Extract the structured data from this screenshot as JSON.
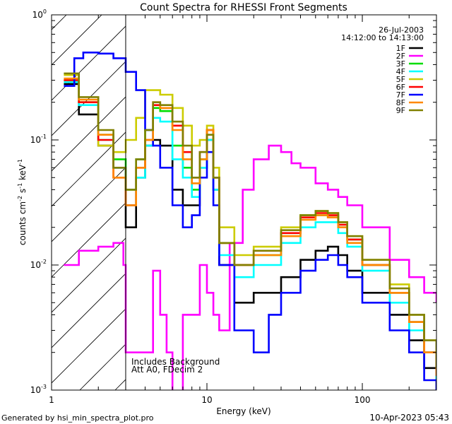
{
  "chart_data": {
    "type": "line",
    "title": "Count Spectra for RHESSI Front Segments",
    "xlabel": "Energy (keV)",
    "ylabel": {
      "base": "counts cm",
      "e1": "-2",
      "mid": " s",
      "e2": "-1",
      "mid2": " keV",
      "e3": "-1"
    },
    "x_scale": "log",
    "y_scale": "log",
    "xlim": [
      1,
      300
    ],
    "ylim": [
      0.001,
      1
    ],
    "x_ticks": [
      {
        "value": 1,
        "label": "1"
      },
      {
        "value": 10,
        "label": "10"
      },
      {
        "value": 100,
        "label": "100"
      }
    ],
    "y_ticks": [
      {
        "value": 0.001,
        "base": "10",
        "exp": "-3"
      },
      {
        "value": 0.01,
        "base": "10",
        "exp": "-2"
      },
      {
        "value": 0.1,
        "base": "10",
        "exp": "-1"
      },
      {
        "value": 1,
        "base": "10",
        "exp": "0"
      }
    ],
    "date": "26-Jul-2003",
    "time_range": "14:12:00 to 14:13:00",
    "hatched_region_upper_kev": 3,
    "annotations": [
      "Includes Background",
      "Att A0, FDecim 2"
    ],
    "series": [
      {
        "name": "1F",
        "color": "#000000",
        "points": [
          [
            1.2,
            0.28
          ],
          [
            1.5,
            0.16
          ],
          [
            2,
            0.09
          ],
          [
            2.5,
            0.06
          ],
          [
            3,
            0.02
          ],
          [
            3.5,
            0.05
          ],
          [
            4,
            0.09
          ],
          [
            4.5,
            0.1
          ],
          [
            5,
            0.09
          ],
          [
            6,
            0.04
          ],
          [
            7,
            0.03
          ],
          [
            8,
            0.03
          ],
          [
            9,
            0.06
          ],
          [
            10,
            0.1
          ],
          [
            11,
            0.04
          ],
          [
            12,
            0.01
          ],
          [
            15,
            0.005
          ],
          [
            20,
            0.006
          ],
          [
            30,
            0.008
          ],
          [
            40,
            0.011
          ],
          [
            50,
            0.013
          ],
          [
            60,
            0.014
          ],
          [
            70,
            0.012
          ],
          [
            80,
            0.009
          ],
          [
            100,
            0.006
          ],
          [
            150,
            0.004
          ],
          [
            200,
            0.0025
          ],
          [
            250,
            0.0015
          ],
          [
            300,
            0.001
          ]
        ]
      },
      {
        "name": "2F",
        "color": "#ff00ff",
        "points": [
          [
            1.2,
            0.01
          ],
          [
            1.5,
            0.013
          ],
          [
            2,
            0.014
          ],
          [
            2.5,
            0.015
          ],
          [
            2.9,
            0.01
          ],
          [
            3,
            0.002
          ],
          [
            4,
            0.002
          ],
          [
            4.5,
            0.009
          ],
          [
            5,
            0.004
          ],
          [
            5.5,
            0.002
          ],
          [
            6,
            0.0006
          ],
          [
            7,
            0.004
          ],
          [
            8,
            0.004
          ],
          [
            9,
            0.01
          ],
          [
            10,
            0.006
          ],
          [
            11,
            0.004
          ],
          [
            12,
            0.003
          ],
          [
            14,
            0.015
          ],
          [
            17,
            0.04
          ],
          [
            20,
            0.07
          ],
          [
            25,
            0.09
          ],
          [
            30,
            0.08
          ],
          [
            35,
            0.065
          ],
          [
            40,
            0.06
          ],
          [
            50,
            0.045
          ],
          [
            60,
            0.04
          ],
          [
            70,
            0.035
          ],
          [
            80,
            0.03
          ],
          [
            100,
            0.02
          ],
          [
            150,
            0.011
          ],
          [
            200,
            0.008
          ],
          [
            250,
            0.006
          ],
          [
            300,
            0.005
          ]
        ]
      },
      {
        "name": "3F",
        "color": "#00dd00",
        "points": [
          [
            1.2,
            0.3
          ],
          [
            1.5,
            0.2
          ],
          [
            2,
            0.11
          ],
          [
            2.5,
            0.07
          ],
          [
            3,
            0.04
          ],
          [
            3.5,
            0.07
          ],
          [
            4,
            0.12
          ],
          [
            4.5,
            0.18
          ],
          [
            5,
            0.17
          ],
          [
            6,
            0.09
          ],
          [
            7,
            0.06
          ],
          [
            8,
            0.04
          ],
          [
            9,
            0.07
          ],
          [
            10,
            0.12
          ],
          [
            11,
            0.05
          ],
          [
            12,
            0.015
          ],
          [
            15,
            0.01
          ],
          [
            20,
            0.012
          ],
          [
            30,
            0.018
          ],
          [
            40,
            0.025
          ],
          [
            50,
            0.025
          ],
          [
            60,
            0.024
          ],
          [
            70,
            0.02
          ],
          [
            80,
            0.016
          ],
          [
            100,
            0.01
          ],
          [
            150,
            0.006
          ],
          [
            200,
            0.0035
          ],
          [
            250,
            0.002
          ],
          [
            300,
            0.0015
          ]
        ]
      },
      {
        "name": "4F",
        "color": "#00ffff",
        "points": [
          [
            1.2,
            0.29
          ],
          [
            1.5,
            0.19
          ],
          [
            2,
            0.1
          ],
          [
            2.5,
            0.06
          ],
          [
            3,
            0.03
          ],
          [
            3.5,
            0.05
          ],
          [
            4,
            0.09
          ],
          [
            4.5,
            0.15
          ],
          [
            5,
            0.14
          ],
          [
            6,
            0.07
          ],
          [
            7,
            0.05
          ],
          [
            8,
            0.035
          ],
          [
            9,
            0.06
          ],
          [
            10,
            0.1
          ],
          [
            11,
            0.04
          ],
          [
            12,
            0.012
          ],
          [
            15,
            0.008
          ],
          [
            20,
            0.01
          ],
          [
            30,
            0.015
          ],
          [
            40,
            0.02
          ],
          [
            50,
            0.022
          ],
          [
            60,
            0.022
          ],
          [
            70,
            0.018
          ],
          [
            80,
            0.014
          ],
          [
            100,
            0.009
          ],
          [
            150,
            0.005
          ],
          [
            200,
            0.003
          ],
          [
            250,
            0.002
          ],
          [
            300,
            0.0012
          ]
        ]
      },
      {
        "name": "5F",
        "color": "#cccc00",
        "points": [
          [
            1.2,
            0.33
          ],
          [
            1.5,
            0.2
          ],
          [
            2,
            0.09
          ],
          [
            2.5,
            0.08
          ],
          [
            3,
            0.1
          ],
          [
            3.5,
            0.15
          ],
          [
            4,
            0.25
          ],
          [
            4.5,
            0.25
          ],
          [
            5,
            0.23
          ],
          [
            6,
            0.18
          ],
          [
            7,
            0.13
          ],
          [
            8,
            0.09
          ],
          [
            9,
            0.1
          ],
          [
            10,
            0.13
          ],
          [
            11,
            0.06
          ],
          [
            12,
            0.02
          ],
          [
            15,
            0.012
          ],
          [
            20,
            0.014
          ],
          [
            30,
            0.02
          ],
          [
            40,
            0.025
          ],
          [
            50,
            0.027
          ],
          [
            60,
            0.026
          ],
          [
            70,
            0.022
          ],
          [
            80,
            0.017
          ],
          [
            100,
            0.011
          ],
          [
            150,
            0.007
          ],
          [
            200,
            0.004
          ],
          [
            250,
            0.0025
          ],
          [
            300,
            0.0015
          ]
        ]
      },
      {
        "name": "6F",
        "color": "#ff0000",
        "points": [
          [
            1.2,
            0.3
          ],
          [
            1.5,
            0.2
          ],
          [
            2,
            0.1
          ],
          [
            2.5,
            0.05
          ],
          [
            3,
            0.03
          ],
          [
            3.5,
            0.06
          ],
          [
            4,
            0.1
          ],
          [
            4.5,
            0.19
          ],
          [
            5,
            0.18
          ],
          [
            6,
            0.13
          ],
          [
            7,
            0.08
          ],
          [
            8,
            0.05
          ],
          [
            9,
            0.08
          ],
          [
            10,
            0.12
          ],
          [
            11,
            0.05
          ],
          [
            12,
            0.015
          ],
          [
            15,
            0.01
          ],
          [
            20,
            0.013
          ],
          [
            30,
            0.018
          ],
          [
            40,
            0.024
          ],
          [
            50,
            0.026
          ],
          [
            60,
            0.025
          ],
          [
            70,
            0.021
          ],
          [
            80,
            0.016
          ],
          [
            100,
            0.01
          ],
          [
            150,
            0.006
          ],
          [
            200,
            0.0035
          ],
          [
            250,
            0.002
          ],
          [
            300,
            0.0013
          ]
        ]
      },
      {
        "name": "7F",
        "color": "#0000ff",
        "points": [
          [
            1.2,
            0.27
          ],
          [
            1.4,
            0.45
          ],
          [
            1.6,
            0.5
          ],
          [
            2,
            0.49
          ],
          [
            2.5,
            0.45
          ],
          [
            3,
            0.35
          ],
          [
            3.5,
            0.25
          ],
          [
            4,
            0.12
          ],
          [
            4.5,
            0.09
          ],
          [
            5,
            0.06
          ],
          [
            6,
            0.03
          ],
          [
            7,
            0.02
          ],
          [
            8,
            0.025
          ],
          [
            9,
            0.05
          ],
          [
            10,
            0.08
          ],
          [
            11,
            0.03
          ],
          [
            12,
            0.01
          ],
          [
            15,
            0.003
          ],
          [
            20,
            0.002
          ],
          [
            25,
            0.004
          ],
          [
            30,
            0.006
          ],
          [
            40,
            0.009
          ],
          [
            50,
            0.011
          ],
          [
            60,
            0.012
          ],
          [
            70,
            0.01
          ],
          [
            80,
            0.008
          ],
          [
            100,
            0.005
          ],
          [
            150,
            0.003
          ],
          [
            200,
            0.002
          ],
          [
            250,
            0.0012
          ],
          [
            300,
            0.001
          ]
        ]
      },
      {
        "name": "8F",
        "color": "#ff8800",
        "points": [
          [
            1.2,
            0.31
          ],
          [
            1.5,
            0.21
          ],
          [
            2,
            0.11
          ],
          [
            2.5,
            0.05
          ],
          [
            3,
            0.03
          ],
          [
            3.5,
            0.06
          ],
          [
            4,
            0.1
          ],
          [
            4.5,
            0.2
          ],
          [
            5,
            0.18
          ],
          [
            6,
            0.12
          ],
          [
            7,
            0.07
          ],
          [
            8,
            0.045
          ],
          [
            9,
            0.07
          ],
          [
            10,
            0.12
          ],
          [
            11,
            0.05
          ],
          [
            12,
            0.015
          ],
          [
            15,
            0.01
          ],
          [
            20,
            0.012
          ],
          [
            30,
            0.017
          ],
          [
            40,
            0.023
          ],
          [
            50,
            0.025
          ],
          [
            60,
            0.024
          ],
          [
            70,
            0.02
          ],
          [
            80,
            0.015
          ],
          [
            100,
            0.01
          ],
          [
            150,
            0.006
          ],
          [
            200,
            0.0035
          ],
          [
            250,
            0.002
          ],
          [
            300,
            0.0013
          ]
        ]
      },
      {
        "name": "9F",
        "color": "#808000",
        "points": [
          [
            1.2,
            0.34
          ],
          [
            1.5,
            0.22
          ],
          [
            2,
            0.12
          ],
          [
            2.5,
            0.06
          ],
          [
            3,
            0.04
          ],
          [
            3.5,
            0.07
          ],
          [
            4,
            0.12
          ],
          [
            4.5,
            0.2
          ],
          [
            5,
            0.19
          ],
          [
            6,
            0.14
          ],
          [
            7,
            0.09
          ],
          [
            8,
            0.05
          ],
          [
            9,
            0.08
          ],
          [
            10,
            0.11
          ],
          [
            11,
            0.05
          ],
          [
            12,
            0.015
          ],
          [
            15,
            0.01
          ],
          [
            20,
            0.013
          ],
          [
            30,
            0.019
          ],
          [
            40,
            0.025
          ],
          [
            50,
            0.027
          ],
          [
            60,
            0.026
          ],
          [
            70,
            0.022
          ],
          [
            80,
            0.017
          ],
          [
            100,
            0.011
          ],
          [
            150,
            0.0065
          ],
          [
            200,
            0.004
          ],
          [
            250,
            0.0025
          ],
          [
            300,
            0.0015
          ]
        ]
      }
    ]
  },
  "footer": {
    "generated_by": "Generated by hsi_min_spectra_plot.pro",
    "timestamp": "10-Apr-2023 05:43"
  }
}
